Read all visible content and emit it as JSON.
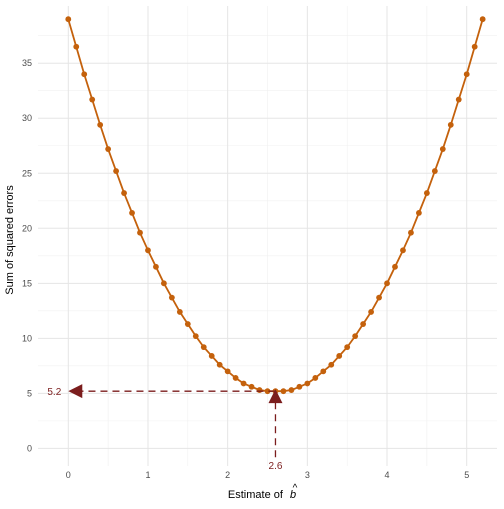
{
  "chart_data": {
    "type": "line",
    "title": "",
    "xlabel": "Estimate of",
    "xlabel_symbol": "b",
    "xlabel_symbol_accent": "^",
    "ylabel": "Sum of squared errors",
    "xlim": [
      -0.38,
      5.38
    ],
    "ylim": [
      -1.6,
      40.2
    ],
    "x_ticks": [
      0,
      1,
      2,
      3,
      4,
      5
    ],
    "x_tick_labels": [
      "0",
      "1",
      "2",
      "3",
      "4",
      "5"
    ],
    "y_ticks": [
      0,
      5,
      10,
      15,
      20,
      25,
      30,
      35
    ],
    "y_tick_labels": [
      "0",
      "5",
      "10",
      "15",
      "20",
      "25",
      "30",
      "35"
    ],
    "grid": true,
    "series": [
      {
        "color": "#c4610c",
        "x": [
          0,
          0.1,
          0.2,
          0.3,
          0.4,
          0.5,
          0.6,
          0.7,
          0.8,
          0.9,
          1.0,
          1.1,
          1.2,
          1.3,
          1.4,
          1.5,
          1.6,
          1.7,
          1.8,
          1.9,
          2.0,
          2.1,
          2.2,
          2.3,
          2.4,
          2.5,
          2.6,
          2.7,
          2.8,
          2.9,
          3.0,
          3.1,
          3.2,
          3.3,
          3.4,
          3.5,
          3.6,
          3.7,
          3.8,
          3.9,
          4.0,
          4.1,
          4.2,
          4.3,
          4.4,
          4.5,
          4.6,
          4.7,
          4.8,
          4.9,
          5.0,
          5.1,
          5.2
        ],
        "y": [
          39.0,
          36.5,
          34.0,
          31.7,
          29.4,
          27.2,
          25.2,
          23.2,
          21.4,
          19.6,
          18.0,
          16.5,
          15.0,
          13.7,
          12.4,
          11.3,
          10.2,
          9.2,
          8.4,
          7.6,
          7.0,
          6.4,
          5.9,
          5.6,
          5.3,
          5.2,
          5.2,
          5.2,
          5.3,
          5.6,
          5.9,
          6.4,
          7.0,
          7.6,
          8.4,
          9.2,
          10.2,
          11.3,
          12.4,
          13.7,
          15.0,
          16.5,
          18.0,
          19.6,
          21.4,
          23.2,
          25.2,
          27.2,
          29.4,
          31.7,
          34.0,
          36.5,
          39.0
        ]
      }
    ],
    "annotations": {
      "color": "#7b1d1d",
      "minimum_x": 2.6,
      "minimum_y": 5.2,
      "x_label": "2.6",
      "y_label": "5.2"
    }
  }
}
